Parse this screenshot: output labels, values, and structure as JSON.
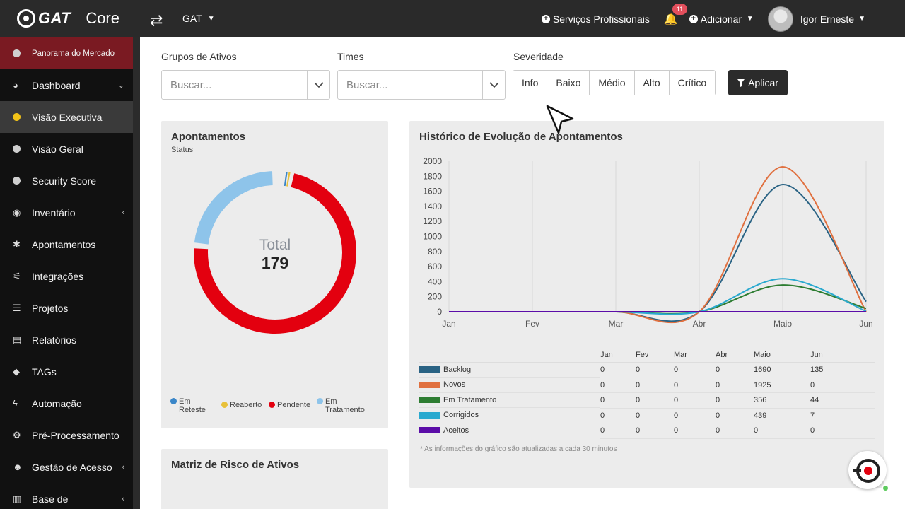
{
  "header": {
    "logo_brand": "GAT",
    "logo_product": "Core",
    "org_select": "GAT",
    "services_label": "Serviços Profissionais",
    "notif_count": "11",
    "add_label": "Adicionar",
    "user_name": "Igor Erneste"
  },
  "sidebar": {
    "items": [
      {
        "label": "Panorama do Mercado"
      },
      {
        "label": "Dashboard"
      },
      {
        "label": "Visão Executiva"
      },
      {
        "label": "Visão Geral"
      },
      {
        "label": "Security Score"
      },
      {
        "label": "Inventário"
      },
      {
        "label": "Apontamentos"
      },
      {
        "label": "Integrações"
      },
      {
        "label": "Projetos"
      },
      {
        "label": "Relatórios"
      },
      {
        "label": "TAGs"
      },
      {
        "label": "Automação"
      },
      {
        "label": "Pré-Processamento"
      },
      {
        "label": "Gestão de Acesso"
      },
      {
        "label": "Base de"
      }
    ]
  },
  "filters": {
    "groups_label": "Grupos de Ativos",
    "groups_placeholder": "Buscar...",
    "teams_label": "Times",
    "teams_placeholder": "Buscar...",
    "severity_label": "Severidade",
    "severity_options": [
      "Info",
      "Baixo",
      "Médio",
      "Alto",
      "Crítico"
    ],
    "apply_label": "Aplicar"
  },
  "donut_card": {
    "title": "Apontamentos",
    "subtitle": "Status",
    "total_label": "Total",
    "total_value": "179",
    "legend": [
      {
        "label": "Em Reteste",
        "color": "#3a86c8"
      },
      {
        "label": "Reaberto",
        "color": "#e8c13a"
      },
      {
        "label": "Pendente",
        "color": "#e3000f"
      },
      {
        "label": "Em Tratamento",
        "color": "#8ec4ea"
      }
    ]
  },
  "risk_card": {
    "title": "Matriz de Risco de Ativos"
  },
  "history_card": {
    "title": "Histórico de Evolução de Apontamentos",
    "table_headers": [
      "",
      "Jan",
      "Fev",
      "Mar",
      "Abr",
      "Maio",
      "Jun"
    ],
    "footnote": "* As informações do gráfico são atualizadas a cada 30 minutos"
  },
  "chart_data": [
    {
      "type": "pie",
      "title": "Apontamentos",
      "subtitle": "Status",
      "series": [
        {
          "name": "Em Reteste",
          "value": 1,
          "color": "#3a86c8"
        },
        {
          "name": "Reaberto",
          "value": 2,
          "color": "#e8c13a"
        },
        {
          "name": "Pendente",
          "value": 133,
          "color": "#e3000f"
        },
        {
          "name": "Em Tratamento",
          "value": 43,
          "color": "#8ec4ea"
        }
      ],
      "total": 179
    },
    {
      "type": "line",
      "title": "Histórico de Evolução de Apontamentos",
      "categories": [
        "Jan",
        "Fev",
        "Mar",
        "Abr",
        "Maio",
        "Jun"
      ],
      "ylim": [
        0,
        2000
      ],
      "yticks": [
        0,
        200,
        400,
        600,
        800,
        1000,
        1200,
        1400,
        1600,
        1800,
        2000
      ],
      "series": [
        {
          "name": "Backlog",
          "color": "#2a6384",
          "values": [
            0,
            0,
            0,
            0,
            1690,
            135
          ]
        },
        {
          "name": "Novos",
          "color": "#e0703f",
          "values": [
            0,
            0,
            0,
            0,
            1925,
            0
          ]
        },
        {
          "name": "Em Tratamento",
          "color": "#2e7d32",
          "values": [
            0,
            0,
            0,
            0,
            356,
            44
          ]
        },
        {
          "name": "Corrigidos",
          "color": "#2aa9cf",
          "values": [
            0,
            0,
            0,
            0,
            439,
            7
          ]
        },
        {
          "name": "Aceitos",
          "color": "#5b0da8",
          "values": [
            0,
            0,
            0,
            0,
            0,
            0
          ]
        }
      ]
    }
  ]
}
